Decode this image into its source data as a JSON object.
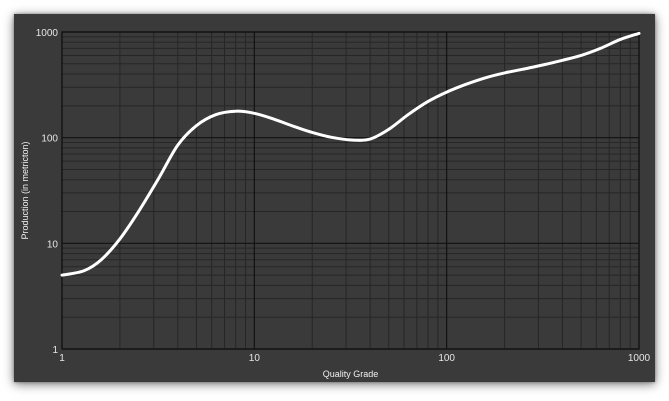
{
  "chart_data": {
    "type": "line",
    "title": "",
    "xlabel": "Quality Grade",
    "ylabel": "Production (in metricton)",
    "x_scale": "log",
    "y_scale": "log",
    "xlim": [
      1,
      1000
    ],
    "ylim": [
      1,
      1000
    ],
    "x_ticks": [
      {
        "value": 1,
        "label": "1"
      },
      {
        "value": 10,
        "label": "10"
      },
      {
        "value": 100,
        "label": "100"
      },
      {
        "value": 1000,
        "label": "1000"
      }
    ],
    "y_ticks": [
      {
        "value": 1,
        "label": "1"
      },
      {
        "value": 10,
        "label": "10"
      },
      {
        "value": 100,
        "label": "100"
      },
      {
        "value": 1000,
        "label": "1000"
      }
    ],
    "grid": true,
    "legend": "none",
    "colors": {
      "background": "#3a3a3a",
      "line": "#ffffff",
      "grid_major": "#111111",
      "grid_minor": "#262626",
      "text": "#e6e6e6"
    },
    "series": [
      {
        "x": [
          1,
          1.3,
          1.6,
          2.0,
          2.5,
          3.2,
          4.0,
          5.0,
          6.3,
          8.0,
          10,
          12.6,
          16,
          20,
          25,
          32,
          40,
          50,
          63,
          80,
          100,
          126,
          160,
          200,
          250,
          320,
          400,
          500,
          630,
          800,
          1000
        ],
        "values": [
          5.0,
          5.5,
          7.0,
          11,
          20,
          42,
          85,
          130,
          165,
          178,
          170,
          150,
          128,
          112,
          101,
          95,
          97,
          120,
          165,
          220,
          270,
          320,
          370,
          410,
          445,
          490,
          540,
          600,
          700,
          850,
          970
        ]
      }
    ]
  }
}
